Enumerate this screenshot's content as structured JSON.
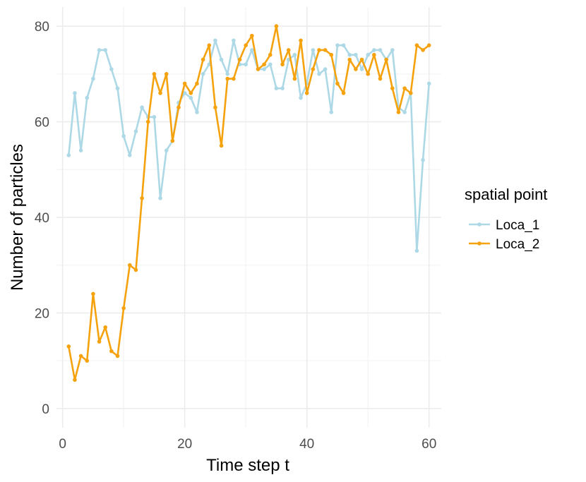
{
  "chart_data": {
    "type": "line",
    "xlabel": "Time step t",
    "ylabel": "Number of particles",
    "xlim": [
      -1,
      62
    ],
    "ylim": [
      -4,
      84
    ],
    "x_ticks": [
      0,
      20,
      40,
      60
    ],
    "y_ticks": [
      0,
      20,
      40,
      60,
      80
    ],
    "grid": true,
    "legend": {
      "title": "spatial point",
      "placement": "right"
    },
    "x": [
      1,
      2,
      3,
      4,
      5,
      6,
      7,
      8,
      9,
      10,
      11,
      12,
      13,
      14,
      15,
      16,
      17,
      18,
      19,
      20,
      21,
      22,
      23,
      24,
      25,
      26,
      27,
      28,
      29,
      30,
      31,
      32,
      33,
      34,
      35,
      36,
      37,
      38,
      39,
      40,
      41,
      42,
      43,
      44,
      45,
      46,
      47,
      48,
      49,
      50,
      51,
      52,
      53,
      54,
      55,
      56,
      57,
      58,
      59,
      60
    ],
    "series": [
      {
        "name": "Loca_1",
        "color": "#add8e6",
        "values": [
          53,
          66,
          54,
          65,
          69,
          75,
          75,
          71,
          67,
          57,
          53,
          58,
          63,
          61,
          61,
          44,
          54,
          56,
          64,
          66,
          65,
          62,
          70,
          72,
          77,
          73,
          70,
          77,
          72,
          72,
          75,
          71,
          71,
          72,
          67,
          67,
          73,
          74,
          65,
          68,
          75,
          70,
          71,
          62,
          76,
          76,
          74,
          74,
          71,
          74,
          75,
          75,
          73,
          75,
          63,
          62,
          66,
          33,
          52,
          68
        ]
      },
      {
        "name": "Loca_2",
        "color": "#f5a20f",
        "values": [
          13,
          6,
          11,
          10,
          24,
          14,
          17,
          12,
          11,
          21,
          30,
          29,
          44,
          60,
          70,
          66,
          70,
          56,
          63,
          68,
          66,
          68,
          73,
          76,
          63,
          55,
          69,
          69,
          73,
          76,
          78,
          71,
          72,
          74,
          80,
          72,
          75,
          69,
          77,
          66,
          71,
          75,
          75,
          74,
          68,
          66,
          73,
          71,
          73,
          70,
          74,
          69,
          73,
          67,
          62,
          67,
          66,
          76,
          75,
          76
        ]
      }
    ]
  }
}
